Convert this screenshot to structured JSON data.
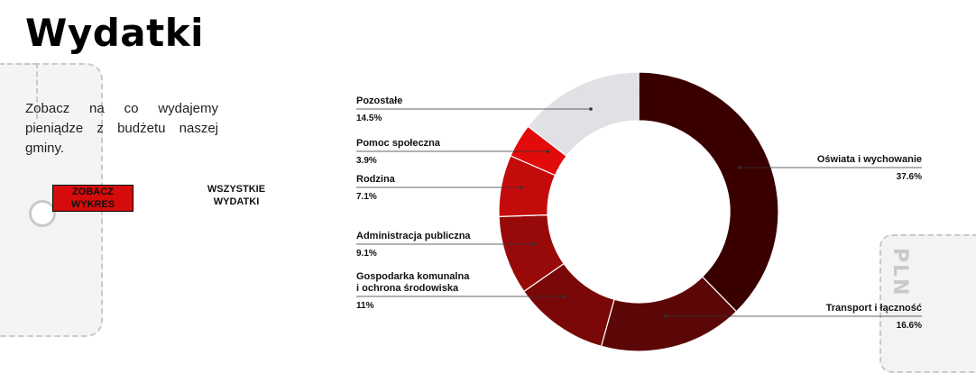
{
  "page": {
    "title": "Wydatki",
    "intro": "Zobacz na co wydajemy pieniądze z budżetu naszej gminy.",
    "buttons": {
      "chart": "ZOBACZ WYKRES",
      "all": "WSZYSTKIE WYDATKI"
    },
    "decor": {
      "pln": "PLN"
    }
  },
  "chart_data": {
    "type": "pie",
    "donut": true,
    "title": "",
    "series": [
      {
        "label": "Oświata i wychowanie",
        "value": 37.6,
        "value_label": "37.6%",
        "color": "#3a0000",
        "side": "right"
      },
      {
        "label": "Transport i łączność",
        "value": 16.6,
        "value_label": "16.6%",
        "color": "#5c0707",
        "side": "right"
      },
      {
        "label": [
          "Gospodarka komunalna",
          "i ochrona środowiska"
        ],
        "value": 11,
        "value_label": "11%",
        "color": "#7a0808",
        "side": "left"
      },
      {
        "label": "Administracja publiczna",
        "value": 9.1,
        "value_label": "9.1%",
        "color": "#980a0a",
        "side": "left"
      },
      {
        "label": "Rodzina",
        "value": 7.1,
        "value_label": "7.1%",
        "color": "#c40b0b",
        "side": "left"
      },
      {
        "label": "Pomoc społeczna",
        "value": 3.9,
        "value_label": "3.9%",
        "color": "#e10b0b",
        "side": "left"
      },
      {
        "label": "Pozostałe",
        "value": 14.5,
        "value_label": "14.5%",
        "color": "#dfe1e4",
        "side": "left"
      }
    ]
  }
}
